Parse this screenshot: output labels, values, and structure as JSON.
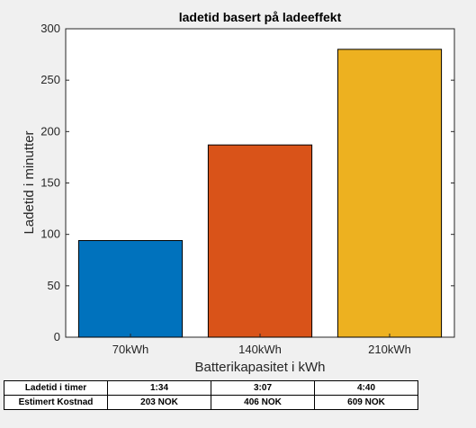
{
  "chart_data": {
    "type": "bar",
    "title": "ladetid basert på ladeeffekt",
    "xlabel": "Batterikapasitet i kWh",
    "ylabel": "Ladetid i minutter",
    "categories": [
      "70kWh",
      "140kWh",
      "210kWh"
    ],
    "values": [
      94,
      187,
      280
    ],
    "colors": [
      "#0072BD",
      "#D95319",
      "#EDB120"
    ],
    "ylim": [
      0,
      300
    ],
    "yticks": [
      0,
      50,
      100,
      150,
      200,
      250,
      300
    ],
    "grid": false
  },
  "table": {
    "rows": [
      {
        "label": "Ladetid i timer",
        "cells": [
          "1:34",
          "3:07",
          "4:40"
        ]
      },
      {
        "label": "Estimert Kostnad",
        "cells": [
          "203 NOK",
          "406 NOK",
          "609 NOK"
        ]
      }
    ]
  }
}
